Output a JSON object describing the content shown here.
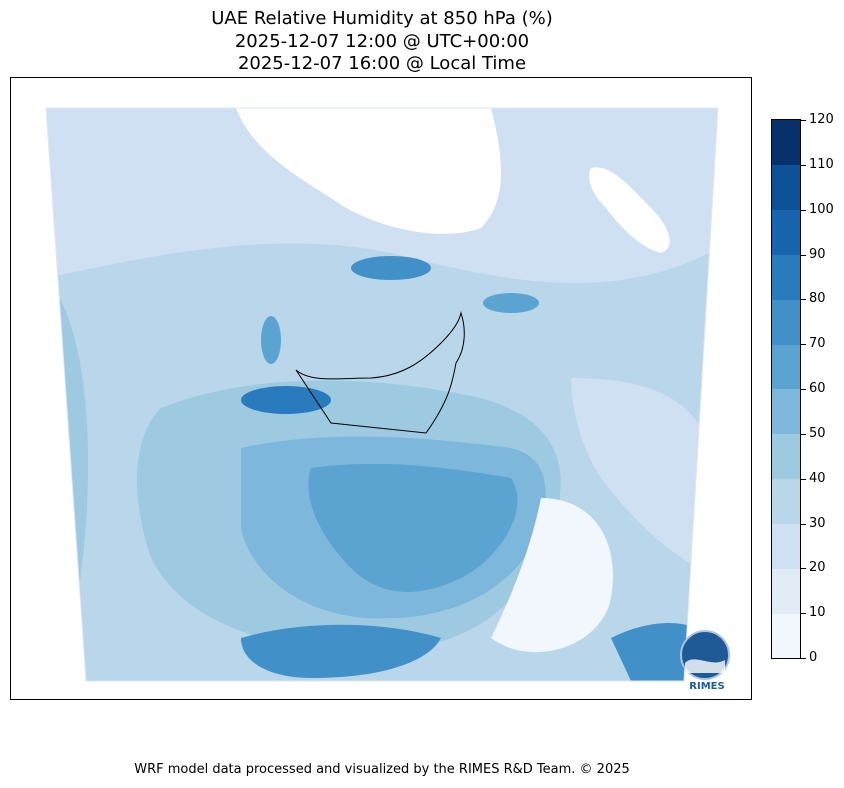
{
  "title": {
    "line1": "UAE Relative Humidity at 850 hPa (%)",
    "line2": "2025-12-07 12:00 @ UTC+00:00",
    "line3": "2025-12-07 16:00 @ Local Time"
  },
  "chart_data": {
    "type": "heatmap",
    "variable": "Relative Humidity",
    "level": "850 hPa",
    "units": "%",
    "colorbar": {
      "min": 0,
      "max": 120,
      "ticks": [
        "0",
        "10",
        "20",
        "30",
        "40",
        "50",
        "60",
        "70",
        "80",
        "90",
        "100",
        "110",
        "120"
      ],
      "levels": [
        0,
        10,
        20,
        30,
        40,
        50,
        60,
        70,
        80,
        90,
        100,
        110,
        120
      ],
      "colors": [
        "#f1f7fd",
        "#e1ecf7",
        "#cfe0f2",
        "#bad6eb",
        "#9ecae1",
        "#7db8dc",
        "#5ba3d0",
        "#4190c7",
        "#2a7bbd",
        "#1965ad",
        "#0d5199",
        "#08306b"
      ]
    }
  },
  "logo": {
    "text": "RIMES"
  },
  "footer": {
    "credit": "WRF model data processed and visualized by the RIMES R&D Team. © 2025"
  }
}
